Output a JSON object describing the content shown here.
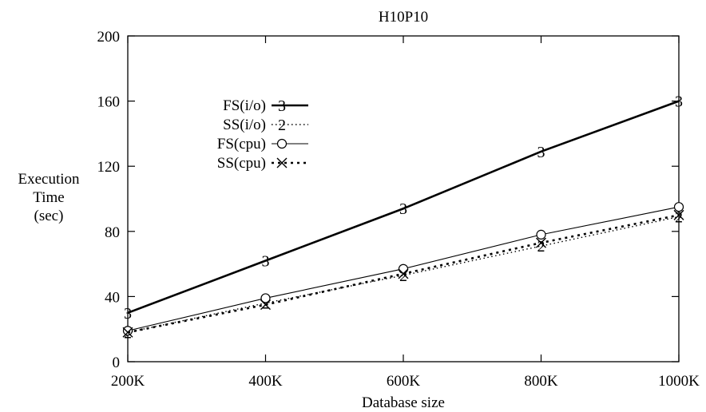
{
  "chart_data": {
    "type": "line",
    "title": "H10P10",
    "xlabel": "Database size",
    "ylabel": [
      "Execution",
      "Time",
      "(sec)"
    ],
    "categories": [
      "200K",
      "400K",
      "600K",
      "800K",
      "1000K"
    ],
    "yticks": [
      "0",
      "40",
      "80",
      "120",
      "160",
      "200"
    ],
    "ylim": [
      0,
      200
    ],
    "grid": false,
    "legend_position": "upper-left inside plot",
    "series": [
      {
        "name": "FS(i/o)",
        "marker": "3",
        "line": "thick-solid",
        "values": [
          30,
          62,
          94,
          129,
          160
        ]
      },
      {
        "name": "SS(i/o)",
        "marker": "2",
        "line": "dotted",
        "values": [
          18,
          36,
          53,
          71,
          89
        ]
      },
      {
        "name": "FS(cpu)",
        "marker": "circle",
        "line": "thin-solid",
        "values": [
          19,
          39,
          57,
          78,
          95
        ]
      },
      {
        "name": "SS(cpu)",
        "marker": "cross",
        "line": "dashed",
        "values": [
          18,
          35,
          54,
          73,
          90
        ]
      }
    ]
  }
}
